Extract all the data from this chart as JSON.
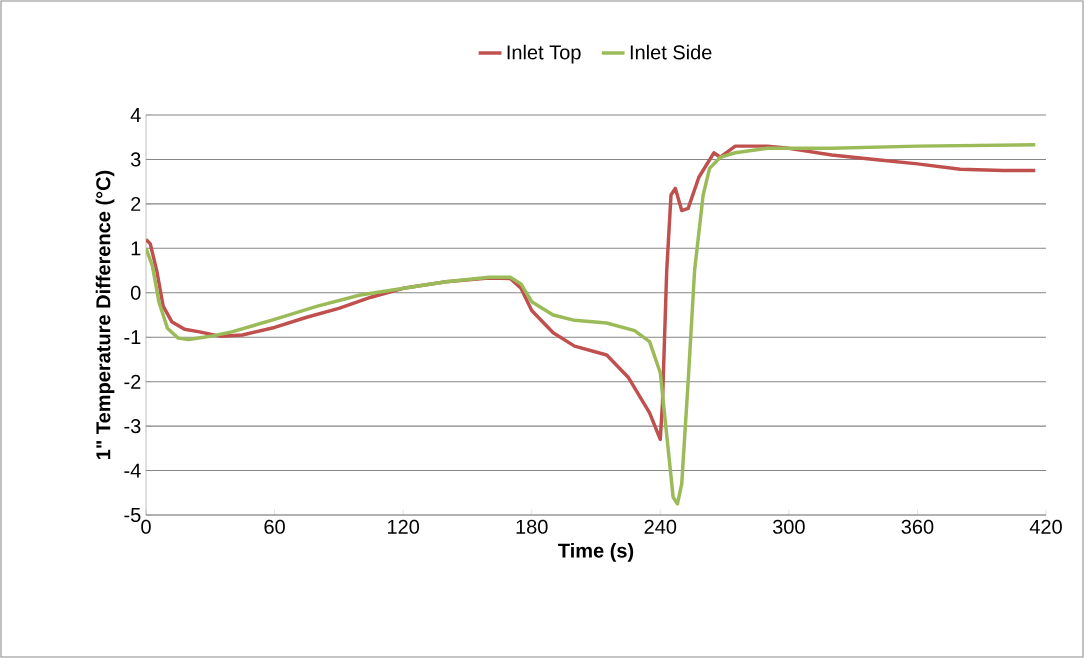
{
  "chart_data": {
    "type": "line",
    "xlabel": "Time (s)",
    "ylabel": "1\" Temperature Difference (°C)",
    "xlim": [
      0,
      420
    ],
    "xticks": [
      0,
      60,
      120,
      180,
      240,
      300,
      360,
      420
    ],
    "ylim": [
      -5,
      4
    ],
    "yticks": [
      -5,
      -4,
      -3,
      -2,
      -1,
      0,
      1,
      2,
      3,
      4
    ],
    "grid": "y",
    "legend": "top",
    "marker": "none",
    "line_style": "solid",
    "series": [
      {
        "name": "Inlet Top",
        "color": "#c0504d",
        "x": [
          0,
          2,
          5,
          8,
          12,
          18,
          25,
          35,
          45,
          60,
          75,
          90,
          105,
          120,
          140,
          160,
          170,
          175,
          180,
          190,
          200,
          215,
          225,
          235,
          240,
          241,
          243,
          245,
          247,
          250,
          253,
          258,
          265,
          268,
          275,
          290,
          300,
          320,
          340,
          360,
          380,
          400,
          415
        ],
        "values": [
          1.2,
          1.1,
          0.5,
          -0.3,
          -0.65,
          -0.82,
          -0.88,
          -0.98,
          -0.95,
          -0.78,
          -0.55,
          -0.35,
          -0.1,
          0.1,
          0.25,
          0.33,
          0.32,
          0.1,
          -0.4,
          -0.9,
          -1.2,
          -1.4,
          -1.9,
          -2.7,
          -3.3,
          -2.5,
          0.5,
          2.2,
          2.35,
          1.85,
          1.9,
          2.6,
          3.15,
          3.05,
          3.3,
          3.3,
          3.25,
          3.1,
          3.0,
          2.9,
          2.78,
          2.75,
          2.75
        ]
      },
      {
        "name": "Inlet Side",
        "color": "#9bbb59",
        "x": [
          0,
          3,
          6,
          10,
          15,
          20,
          30,
          40,
          60,
          80,
          100,
          120,
          140,
          160,
          170,
          175,
          180,
          190,
          200,
          215,
          228,
          235,
          240,
          243,
          246,
          248,
          250,
          253,
          256,
          260,
          263,
          268,
          275,
          290,
          320,
          360,
          415
        ],
        "values": [
          1.0,
          0.6,
          -0.2,
          -0.8,
          -1.02,
          -1.05,
          -0.98,
          -0.88,
          -0.6,
          -0.3,
          -0.05,
          0.1,
          0.25,
          0.35,
          0.35,
          0.2,
          -0.2,
          -0.5,
          -0.62,
          -0.68,
          -0.85,
          -1.1,
          -1.8,
          -3.2,
          -4.6,
          -4.75,
          -4.3,
          -2.0,
          0.5,
          2.2,
          2.8,
          3.05,
          3.15,
          3.25,
          3.25,
          3.3,
          3.33
        ]
      }
    ]
  }
}
